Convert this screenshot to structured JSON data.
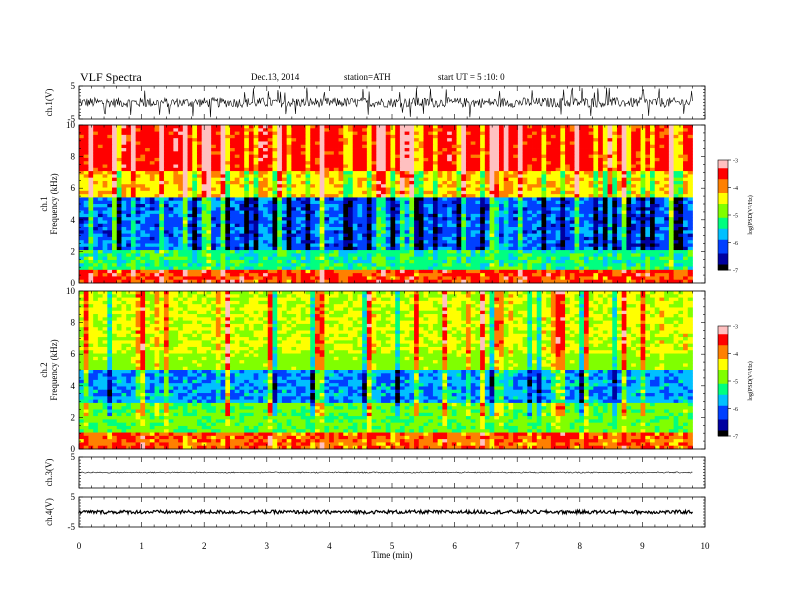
{
  "header": {
    "title": "VLF  Spectra",
    "date": "Dec.13, 2014",
    "station": "station=ATH",
    "start": "start  UT  =   5  :10: 0"
  },
  "chart_data": {
    "type": "spectrogram",
    "xlabel": "Time  (min)",
    "xlim": [
      0,
      10
    ],
    "xticks": [
      "0",
      "1",
      "2",
      "3",
      "4",
      "5",
      "6",
      "7",
      "8",
      "9",
      "10"
    ],
    "data_end_min": 9.8,
    "panels": [
      {
        "id": "ch1_wave",
        "ylabel": "ch.1(V)",
        "ylim": [
          -5,
          5
        ],
        "yticks": [
          "5",
          "-5"
        ],
        "kind": "waveform",
        "amplitude_v": 1.5
      },
      {
        "id": "ch1_spec",
        "ylabel": "ch.1\nFrequency  (kHz)",
        "ylim": [
          0,
          10
        ],
        "yticks": [
          "0",
          "2",
          "4",
          "6",
          "8",
          "10"
        ],
        "kind": "spectrogram",
        "colorbar": {
          "label": "log(PSD(V²/Hz)",
          "range": [
            -7,
            -3
          ],
          "ticks": [
            "-3",
            "-4",
            "-5",
            "-6",
            "-7"
          ]
        }
      },
      {
        "id": "ch2_spec",
        "ylabel": "ch.2\nFrequency  (kHz)",
        "ylim": [
          0,
          10
        ],
        "yticks": [
          "0",
          "2",
          "4",
          "6",
          "8",
          "10"
        ],
        "kind": "spectrogram",
        "colorbar": {
          "label": "log(PSD(V²/Hz)",
          "range": [
            -7,
            -3
          ],
          "ticks": [
            "-3",
            "-4",
            "-5",
            "-6",
            "-7"
          ]
        }
      },
      {
        "id": "ch3_wave",
        "ylabel": "ch.3(V)",
        "ylim": [
          -5,
          5
        ],
        "yticks": [
          "5"
        ],
        "kind": "waveform",
        "amplitude_v": 0.2
      },
      {
        "id": "ch4_wave",
        "ylabel": "ch.4(V)",
        "ylim": [
          -5,
          5
        ],
        "yticks": [
          "5",
          "-5"
        ],
        "kind": "waveform",
        "amplitude_v": 0.6
      }
    ],
    "colormap": [
      "#000000",
      "#0000a0",
      "#0040ff",
      "#00c0ff",
      "#00ff80",
      "#80ff00",
      "#ffff00",
      "#ff8000",
      "#ff0000",
      "#ffc0c0"
    ]
  }
}
